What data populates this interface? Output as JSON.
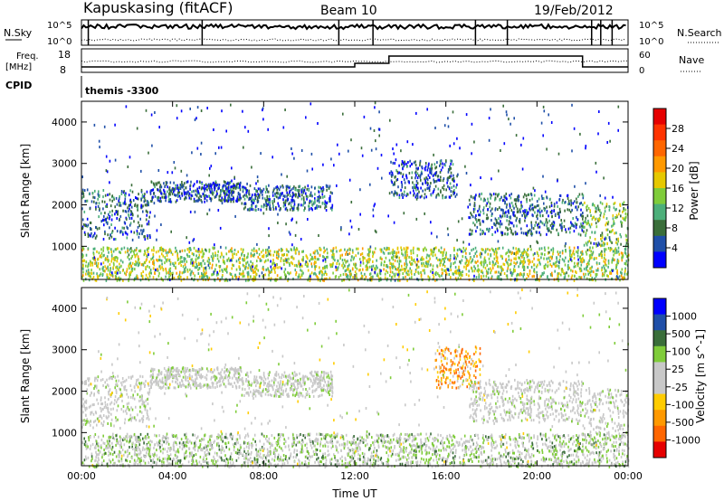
{
  "header": {
    "station_title": "Kapuskasing (fitACF)",
    "beam": "Beam 10",
    "date": "19/Feb/2012"
  },
  "top_panels": {
    "nsky_label": "N.Sky",
    "nsearch_label": "N.Search",
    "nsky_tick_hi": "10^5",
    "nsky_tick_lo": "10^0",
    "freq_label_line1": "Freq.",
    "freq_label_line2": "[MHz]",
    "freq_tick_hi": "18",
    "freq_tick_lo": "8",
    "nave_label": "Nave",
    "nave_tick_hi": "60",
    "nave_tick_lo": "0",
    "cpid_label": "CPID",
    "cpid_value": "themis -3300"
  },
  "colors": {
    "power_scale": [
      "#0000ff",
      "#1f4fa8",
      "#3a6e3a",
      "#4caf7a",
      "#7fcc3a",
      "#e6c800",
      "#ff9900",
      "#ff6600",
      "#ff3300",
      "#e60000"
    ],
    "velocity_scale": [
      "#0000ff",
      "#1f4fa8",
      "#3a6e3a",
      "#7fcc3a",
      "#c8c8c8",
      "#c8c8c8",
      "#ffcc00",
      "#ff9900",
      "#ff6600",
      "#e60000"
    ],
    "ground_scatter": "#c8c8c8"
  },
  "chart_data": [
    {
      "type": "heatmap",
      "panel": "power",
      "ylabel": "Slant Range [km]",
      "yticks": [
        "1000",
        "2000",
        "3000",
        "4000"
      ],
      "ylim": [
        200,
        4500
      ],
      "colorbar_label": "Power [dB]",
      "colorbar_ticks": [
        "4",
        "8",
        "12",
        "16",
        "20",
        "24",
        "28"
      ],
      "colorbar_range": [
        0,
        30
      ],
      "scatter_bands": [
        {
          "x_start": 0.0,
          "x_end": 3.0,
          "range_low": 1200,
          "range_high": 2400,
          "power": 6
        },
        {
          "x_start": 3.0,
          "x_end": 7.0,
          "range_low": 2100,
          "range_high": 2600,
          "power": 5
        },
        {
          "x_start": 7.0,
          "x_end": 11.0,
          "range_low": 1900,
          "range_high": 2500,
          "power": 6
        },
        {
          "x_start": 13.5,
          "x_end": 16.5,
          "range_low": 2200,
          "range_high": 3100,
          "power": 5
        },
        {
          "x_start": 17.0,
          "x_end": 22.0,
          "range_low": 1300,
          "range_high": 2300,
          "power": 6
        },
        {
          "x_start": 22.0,
          "x_end": 24.0,
          "range_low": 900,
          "range_high": 2100,
          "power": 12
        },
        {
          "x_start": 0.0,
          "x_end": 24.0,
          "range_low": 200,
          "range_high": 1000,
          "power": 14
        }
      ]
    },
    {
      "type": "heatmap",
      "panel": "velocity",
      "xlabel": "Time UT",
      "xticks": [
        "00:00",
        "04:00",
        "08:00",
        "12:00",
        "16:00",
        "20:00",
        "00:00"
      ],
      "xlim": [
        0,
        24
      ],
      "ylabel": "Slant Range [km]",
      "yticks": [
        "1000",
        "2000",
        "3000",
        "4000"
      ],
      "ylim": [
        200,
        4500
      ],
      "colorbar_label": "Velocity [m s^-1]",
      "colorbar_ticks": [
        "1000",
        "500",
        "100",
        "25",
        "-25",
        "-100",
        "-500",
        "-1000"
      ],
      "colorbar_range": [
        -1000,
        1000
      ],
      "scatter_bands": [
        {
          "x_start": 0.0,
          "x_end": 3.0,
          "range_low": 1200,
          "range_high": 2400,
          "velocity": 0
        },
        {
          "x_start": 3.0,
          "x_end": 7.0,
          "range_low": 2100,
          "range_high": 2600,
          "velocity": 0
        },
        {
          "x_start": 7.0,
          "x_end": 11.0,
          "range_low": 1900,
          "range_high": 2500,
          "velocity": 0
        },
        {
          "x_start": 15.5,
          "x_end": 17.5,
          "range_low": 2100,
          "range_high": 3100,
          "velocity": -400
        },
        {
          "x_start": 17.0,
          "x_end": 22.0,
          "range_low": 1300,
          "range_high": 2300,
          "velocity": 0
        },
        {
          "x_start": 22.0,
          "x_end": 24.0,
          "range_low": 800,
          "range_high": 2100,
          "velocity": 0
        },
        {
          "x_start": 0.0,
          "x_end": 24.0,
          "range_low": 200,
          "range_high": 1000,
          "velocity": 150
        }
      ]
    }
  ]
}
